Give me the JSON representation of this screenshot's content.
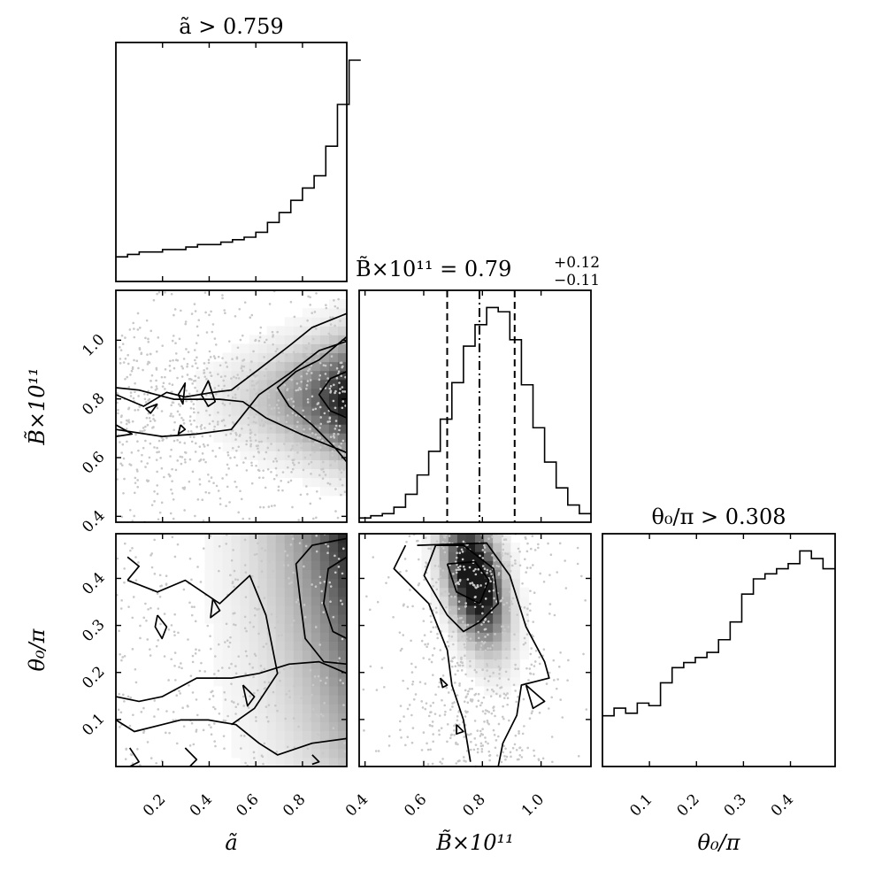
{
  "chart_data": {
    "type": "corner",
    "parameters": [
      "a_tilde",
      "B_tilde",
      "theta0"
    ],
    "axis_labels": {
      "a_tilde": "ã",
      "B_tilde": "B̃×10¹¹",
      "theta0": "θ₀/π"
    },
    "titles": {
      "a_tilde": "ã > 0.759",
      "B_tilde": "B̃×10¹¹ = 0.79",
      "B_tilde_sup": "+0.12",
      "B_tilde_sub": "−0.11",
      "theta0": "θ₀/π > 0.308"
    },
    "ranges": {
      "a_tilde": [
        0.0,
        0.99
      ],
      "B_tilde": [
        0.38,
        1.17
      ],
      "theta0": [
        0.0,
        0.495
      ]
    },
    "ticks": {
      "a_tilde": [
        "0.2",
        "0.4",
        "0.6",
        "0.8"
      ],
      "B_tilde": [
        "0.4",
        "0.6",
        "0.8",
        "1.0"
      ],
      "theta0": [
        "0.1",
        "0.2",
        "0.3",
        "0.4"
      ]
    },
    "tick_values": {
      "a_tilde": [
        0.2,
        0.4,
        0.6,
        0.8
      ],
      "B_tilde": [
        0.4,
        0.6,
        0.8,
        1.0
      ],
      "theta0": [
        0.1,
        0.2,
        0.3,
        0.4
      ]
    },
    "hist_a_tilde": {
      "bin_start": 0.0,
      "bin_width": 0.05,
      "values": [
        0.1,
        0.11,
        0.12,
        0.12,
        0.13,
        0.13,
        0.14,
        0.15,
        0.15,
        0.16,
        0.17,
        0.18,
        0.2,
        0.24,
        0.28,
        0.33,
        0.38,
        0.43,
        0.55,
        0.72,
        0.9
      ]
    },
    "hist_B_tilde": {
      "bin_start": 0.38,
      "bin_width": 0.0395,
      "values": [
        0.02,
        0.03,
        0.04,
        0.07,
        0.13,
        0.22,
        0.33,
        0.48,
        0.65,
        0.82,
        0.92,
        1.0,
        0.98,
        0.85,
        0.64,
        0.44,
        0.28,
        0.16,
        0.08,
        0.04
      ],
      "median": 0.79,
      "lower": 0.68,
      "upper": 0.91
    },
    "hist_theta0": {
      "bin_start": 0.0,
      "bin_width": 0.0247,
      "values": [
        0.2,
        0.23,
        0.21,
        0.25,
        0.24,
        0.33,
        0.39,
        0.41,
        0.43,
        0.45,
        0.5,
        0.57,
        0.68,
        0.74,
        0.76,
        0.78,
        0.8,
        0.85,
        0.82,
        0.78
      ]
    },
    "grid": false,
    "legend": "none"
  }
}
